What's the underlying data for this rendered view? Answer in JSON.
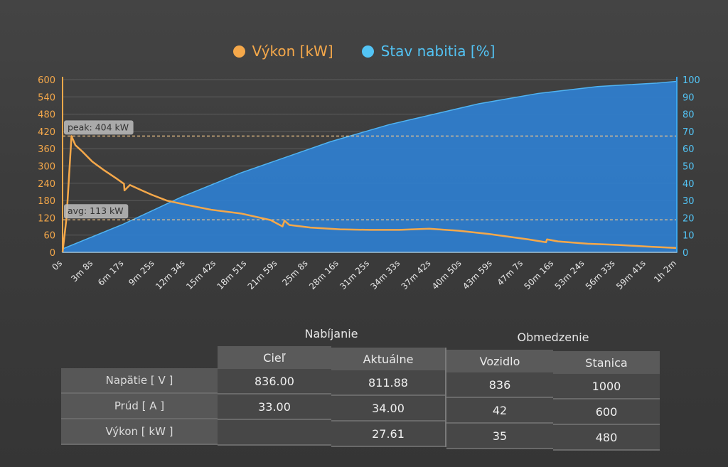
{
  "legend": {
    "power_label": "Výkon [kW]",
    "soc_label": "Stav nabitia [%]"
  },
  "colors": {
    "power": "#f5a84a",
    "soc": "#3aa7f0",
    "soc_fill": "#2f7fd0"
  },
  "chart_data": {
    "type": "line",
    "x_tick_labels": [
      "0s",
      "3m 8s",
      "6m 17s",
      "9m 25s",
      "12m 34s",
      "15m 42s",
      "18m 51s",
      "21m 59s",
      "25m 8s",
      "28m 16s",
      "31m 25s",
      "34m 33s",
      "37m 42s",
      "40m 50s",
      "43m 59s",
      "47m 7s",
      "50m 16s",
      "53m 24s",
      "56m 33s",
      "59m 41s",
      "1h 2m"
    ],
    "y_left": {
      "ticks": [
        0,
        60,
        120,
        180,
        240,
        300,
        360,
        420,
        480,
        540,
        600
      ],
      "lim": [
        0,
        600
      ]
    },
    "y_right": {
      "ticks": [
        0,
        10,
        20,
        30,
        40,
        50,
        60,
        70,
        80,
        90,
        100
      ],
      "lim": [
        0,
        100
      ]
    },
    "series": [
      {
        "name": "Výkon [kW]",
        "axis": "left",
        "x_min": [
          0,
          0.4,
          0.9,
          1.3,
          2,
          3,
          4.2,
          5.5,
          6.2,
          6.25,
          6.8,
          8,
          9,
          10.5,
          12.5,
          15,
          18,
          21,
          22.2,
          22.4,
          22.9,
          25,
          28,
          31,
          34,
          37,
          40,
          43,
          47,
          48.8,
          48.9,
          50,
          53,
          56,
          59,
          62
        ],
        "values": [
          0,
          120,
          404,
          372,
          350,
          315,
          285,
          255,
          238,
          215,
          234,
          215,
          200,
          180,
          165,
          148,
          135,
          112,
          90,
          110,
          95,
          86,
          80,
          78,
          78,
          82,
          75,
          64,
          45,
          35,
          45,
          38,
          30,
          26,
          20,
          15
        ]
      },
      {
        "name": "Stav nabitia [%]",
        "axis": "right",
        "x_min": [
          0,
          3,
          6,
          9,
          12,
          15,
          18,
          21,
          24,
          27,
          30,
          33,
          36,
          39,
          42,
          45,
          48,
          51,
          54,
          57,
          60,
          62
        ],
        "values": [
          2,
          9,
          16,
          24,
          32,
          39,
          46,
          52,
          58,
          64,
          69,
          74,
          78,
          82,
          86,
          89,
          92,
          94,
          96,
          97,
          98,
          99
        ]
      }
    ],
    "annotations": [
      {
        "label": "peak: 404 kW",
        "value": 404,
        "axis": "left"
      },
      {
        "label": "avg: 113 kW",
        "value": 113,
        "axis": "left"
      }
    ],
    "x_max_min": 62
  },
  "table": {
    "group_charging": "Nabíjanie",
    "group_limits": "Obmedzenie",
    "headers": [
      "Cieľ",
      "Aktuálne",
      "Vozidlo",
      "Stanica"
    ],
    "rows": [
      {
        "label": "Napätie [ V ]",
        "cells": [
          "836.00",
          "811.88",
          "836",
          "1000"
        ]
      },
      {
        "label": "Prúd [ A ]",
        "cells": [
          "33.00",
          "34.00",
          "42",
          "600"
        ]
      },
      {
        "label": "Výkon [ kW ]",
        "cells": [
          "",
          "27.61",
          "35",
          "480"
        ]
      }
    ]
  }
}
